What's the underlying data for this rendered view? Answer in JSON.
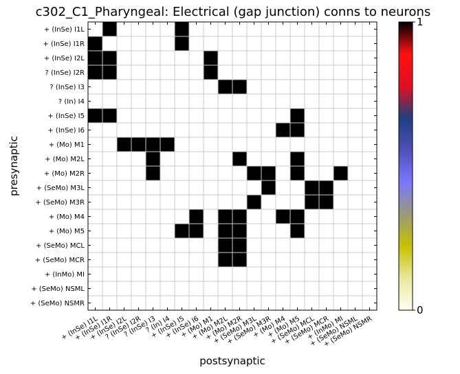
{
  "chart_data": {
    "type": "heatmap",
    "title": "c302_C1_Pharyngeal: Electrical (gap junction) conns to neurons",
    "xlabel": "postsynaptic",
    "ylabel": "presynaptic",
    "rows": [
      "+ (InSe) I1L",
      "+ (InSe) I1R",
      "+ (InSe) I2L",
      "? (InSe) I2R",
      "? (InSe) I3",
      "? (In) I4",
      "+ (InSe) I5",
      "+ (InSe) I6",
      "+ (Mo) M1",
      "+ (Mo) M2L",
      "+ (Mo) M2R",
      "+ (SeMo) M3L",
      "+ (SeMo) M3R",
      "+ (Mo) M4",
      "+ (Mo) M5",
      "+ (SeMo) MCL",
      "+ (SeMo) MCR",
      "+ (InMo) MI",
      "+ (SeMo) NSML",
      "+ (SeMo) NSMR"
    ],
    "columns": [
      "+ (InSe) I1L",
      "+ (InSe) I1R",
      "+ (InSe) I2L",
      "? (InSe) I2R",
      "? (InSe) I3",
      "? (In) I4",
      "+ (InSe) I5",
      "+ (InSe) I6",
      "+ (Mo) M1",
      "+ (Mo) M2L",
      "+ (Mo) M2R",
      "+ (SeMo) M3L",
      "+ (SeMo) M3R",
      "+ (Mo) M4",
      "+ (Mo) M5",
      "+ (SeMo) MCL",
      "+ (SeMo) MCR",
      "+ (InMo) MI",
      "+ (SeMo) NSML",
      "+ (SeMo) NSMR"
    ],
    "values": [
      [
        0,
        1,
        0,
        0,
        0,
        0,
        1,
        0,
        0,
        0,
        0,
        0,
        0,
        0,
        0,
        0,
        0,
        0,
        0,
        0
      ],
      [
        1,
        0,
        0,
        0,
        0,
        0,
        1,
        0,
        0,
        0,
        0,
        0,
        0,
        0,
        0,
        0,
        0,
        0,
        0,
        0
      ],
      [
        1,
        1,
        0,
        0,
        0,
        0,
        0,
        0,
        1,
        0,
        0,
        0,
        0,
        0,
        0,
        0,
        0,
        0,
        0,
        0
      ],
      [
        1,
        1,
        0,
        0,
        0,
        0,
        0,
        0,
        1,
        0,
        0,
        0,
        0,
        0,
        0,
        0,
        0,
        0,
        0,
        0
      ],
      [
        0,
        0,
        0,
        0,
        0,
        0,
        0,
        0,
        0,
        1,
        1,
        0,
        0,
        0,
        0,
        0,
        0,
        0,
        0,
        0
      ],
      [
        0,
        0,
        0,
        0,
        0,
        0,
        0,
        0,
        0,
        0,
        0,
        0,
        0,
        0,
        0,
        0,
        0,
        0,
        0,
        0
      ],
      [
        1,
        1,
        0,
        0,
        0,
        0,
        0,
        0,
        0,
        0,
        0,
        0,
        0,
        0,
        1,
        0,
        0,
        0,
        0,
        0
      ],
      [
        0,
        0,
        0,
        0,
        0,
        0,
        0,
        0,
        0,
        0,
        0,
        0,
        0,
        1,
        1,
        0,
        0,
        0,
        0,
        0
      ],
      [
        0,
        0,
        1,
        1,
        1,
        1,
        0,
        0,
        0,
        0,
        0,
        0,
        0,
        0,
        0,
        0,
        0,
        0,
        0,
        0
      ],
      [
        0,
        0,
        0,
        0,
        1,
        0,
        0,
        0,
        0,
        0,
        1,
        0,
        0,
        0,
        1,
        0,
        0,
        0,
        0,
        0
      ],
      [
        0,
        0,
        0,
        0,
        1,
        0,
        0,
        0,
        0,
        0,
        0,
        1,
        1,
        0,
        1,
        0,
        0,
        1,
        0,
        0
      ],
      [
        0,
        0,
        0,
        0,
        0,
        0,
        0,
        0,
        0,
        0,
        0,
        0,
        1,
        0,
        0,
        1,
        1,
        0,
        0,
        0
      ],
      [
        0,
        0,
        0,
        0,
        0,
        0,
        0,
        0,
        0,
        0,
        0,
        1,
        0,
        0,
        0,
        1,
        1,
        0,
        0,
        0
      ],
      [
        0,
        0,
        0,
        0,
        0,
        0,
        0,
        1,
        0,
        1,
        1,
        0,
        0,
        1,
        1,
        0,
        0,
        0,
        0,
        0
      ],
      [
        0,
        0,
        0,
        0,
        0,
        0,
        1,
        1,
        0,
        1,
        1,
        0,
        0,
        0,
        1,
        0,
        0,
        0,
        0,
        0
      ],
      [
        0,
        0,
        0,
        0,
        0,
        0,
        0,
        0,
        0,
        1,
        1,
        0,
        0,
        0,
        0,
        0,
        0,
        0,
        0,
        0
      ],
      [
        0,
        0,
        0,
        0,
        0,
        0,
        0,
        0,
        0,
        1,
        1,
        0,
        0,
        0,
        0,
        0,
        0,
        0,
        0,
        0
      ],
      [
        0,
        0,
        0,
        0,
        0,
        0,
        0,
        0,
        0,
        0,
        0,
        0,
        0,
        0,
        0,
        0,
        0,
        0,
        0,
        0
      ],
      [
        0,
        0,
        0,
        0,
        0,
        0,
        0,
        0,
        0,
        0,
        0,
        0,
        0,
        0,
        0,
        0,
        0,
        0,
        0,
        0
      ],
      [
        0,
        0,
        0,
        0,
        0,
        0,
        0,
        0,
        0,
        0,
        0,
        0,
        0,
        0,
        0,
        0,
        0,
        0,
        0,
        0
      ]
    ],
    "colorbar": {
      "min_label": "0",
      "max_label": "1"
    },
    "colormap": [
      "#fffff0",
      "#e8e8a0",
      "#c8c000",
      "#9a9a78",
      "#7878ff",
      "#5050b8",
      "#1f3f7f",
      "#e01020",
      "#ff1010",
      "#000000"
    ],
    "cell_on_color": "#000000",
    "cell_off_color": "#ffffff",
    "grid_color": "#c8c8c8",
    "grid": true
  }
}
